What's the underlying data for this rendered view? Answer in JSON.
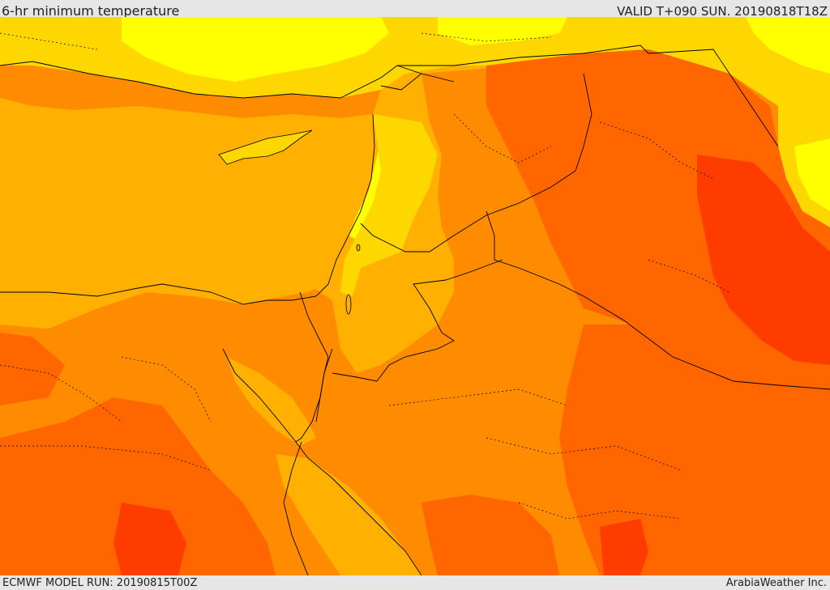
{
  "header": {
    "title": "6-hr minimum temperature",
    "valid": "VALID T+090 SUN. 20190818T18Z"
  },
  "footer": {
    "model_run": "ECMWF MODEL RUN: 20190815T00Z",
    "credit": "ArabiaWeather Inc."
  },
  "map": {
    "region": "Eastern Mediterranean and Middle East",
    "palette": {
      "band_yellow": "#ffff00",
      "band_light_orange": "#ffd700",
      "band_orange": "#ffb000",
      "band_dark_orange": "#ff8c00",
      "band_red_orange": "#ff6600",
      "band_red": "#ff3c00",
      "boundary_lines": "#000000"
    }
  }
}
